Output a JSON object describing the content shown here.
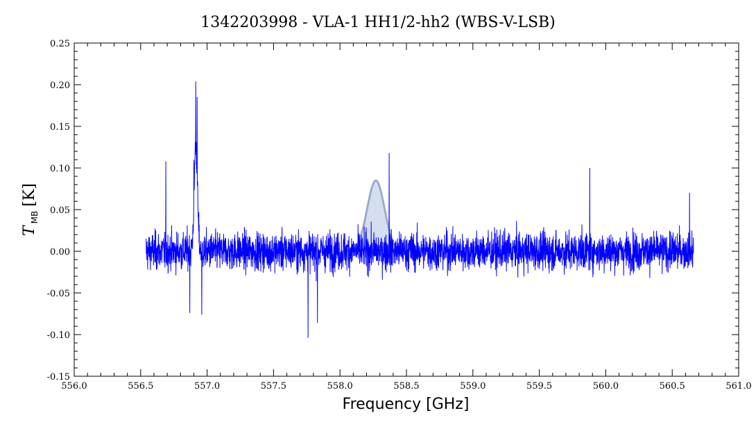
{
  "chart_data": {
    "type": "line",
    "title": "1342203998 - VLA-1 HH1/2-hh2 (WBS-V-LSB)",
    "xlabel": "Frequency [GHz]",
    "ylabel": {
      "symbol": "T",
      "subscript": "MB",
      "unit": "[K]"
    },
    "xlim": [
      556.0,
      561.0
    ],
    "ylim": [
      -0.15,
      0.25
    ],
    "x_ticks": [
      "556.0",
      "556.5",
      "557.0",
      "557.5",
      "558.0",
      "558.5",
      "559.0",
      "559.5",
      "560.0",
      "560.5",
      "561.0"
    ],
    "y_ticks": [
      "0.25",
      "0.20",
      "0.15",
      "0.10",
      "0.05",
      "0.00",
      "-0.05",
      "-0.10",
      "-0.15"
    ],
    "grid": false,
    "colors": {
      "spectrum": "#0000ff",
      "fit": "#9aaccc",
      "fit_fill": "#c6d3ea",
      "axes": "#000000"
    },
    "series": [
      {
        "values_description_note": "",
        "x_range": [
          556.54,
          560.66
        ],
        "baseline": 0.0,
        "noise_rms": 0.02,
        "features": [
          {
            "x": 556.69,
            "y": 0.108
          },
          {
            "x": 556.9,
            "y": 0.11
          },
          {
            "x": 556.915,
            "y": 0.204
          },
          {
            "x": 556.925,
            "y": 0.185
          },
          {
            "x": 556.87,
            "y": -0.074
          },
          {
            "x": 556.96,
            "y": -0.076
          },
          {
            "x": 557.76,
            "y": -0.104
          },
          {
            "x": 557.83,
            "y": -0.086
          },
          {
            "x": 558.37,
            "y": 0.118
          },
          {
            "x": 559.88,
            "y": 0.1
          },
          {
            "x": 560.63,
            "y": 0.07
          }
        ]
      },
      {
        "name_hidden": "",
        "type": "gaussian",
        "center": 558.27,
        "peak": 0.085,
        "sigma": 0.065
      }
    ]
  }
}
